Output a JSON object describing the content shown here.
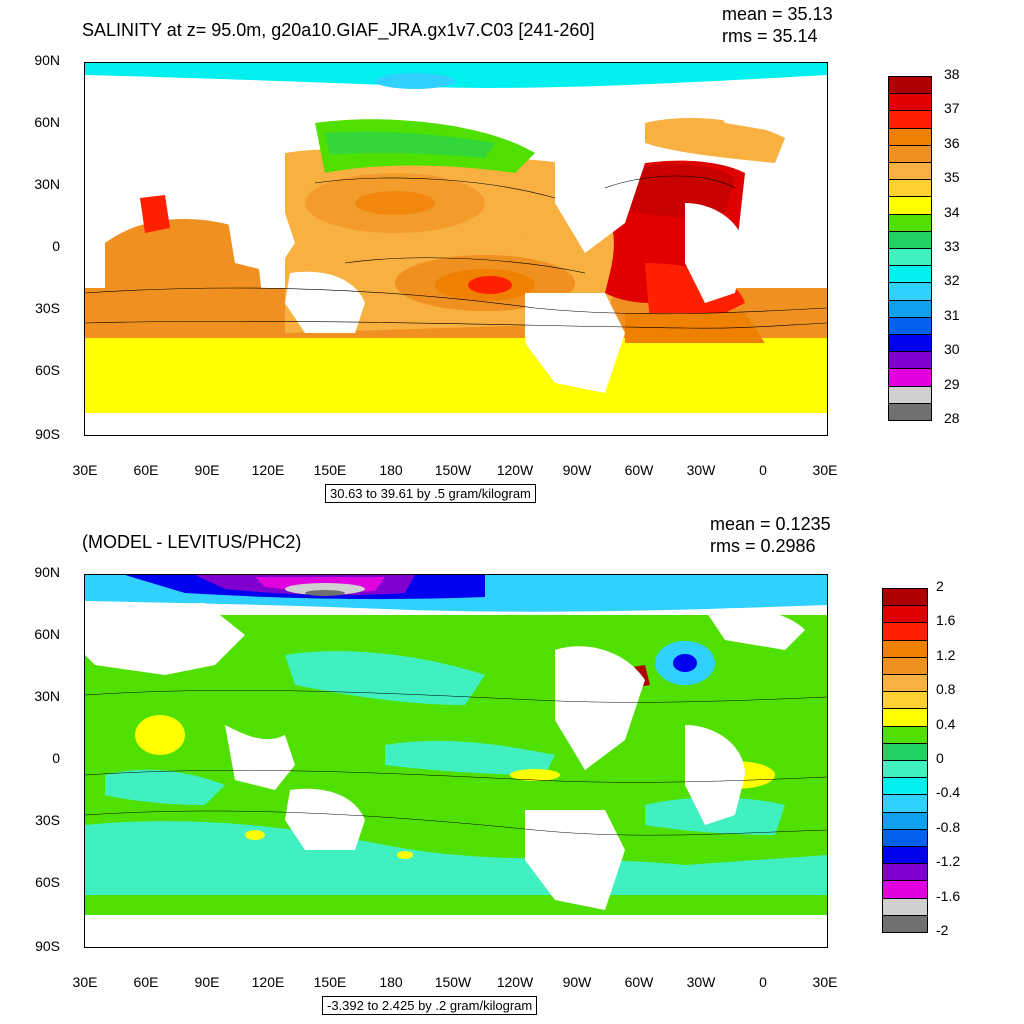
{
  "top_panel": {
    "title": "SALINITY at z=  95.0m, g20a10.GIAF_JRA.gx1v7.C03 [241-260]",
    "mean": "mean = 35.13",
    "rms": "rms = 35.14",
    "info": "30.63 to 39.61 by .5 gram/kilogram",
    "lat_labels": [
      "90N",
      "60N",
      "30N",
      "0",
      "30S",
      "60S",
      "90S"
    ],
    "lon_labels": [
      "30E",
      "60E",
      "90E",
      "120E",
      "150E",
      "180",
      "150W",
      "120W",
      "90W",
      "60W",
      "30W",
      "0",
      "30E"
    ],
    "colorbar": {
      "colors": [
        "#b00000",
        "#e00000",
        "#ff2000",
        "#f08000",
        "#f09020",
        "#f8b040",
        "#ffd030",
        "#ffff00",
        "#50e000",
        "#20d060",
        "#40f0c0",
        "#00f0f0",
        "#30d0ff",
        "#10a0f0",
        "#0060f0",
        "#0000f0",
        "#8000d0",
        "#e000e0",
        "#d0d0d0",
        "#707070"
      ],
      "labels": [
        "38",
        "37",
        "36",
        "35",
        "34",
        "33",
        "32",
        "31",
        "30",
        "29",
        "28"
      ]
    }
  },
  "bottom_panel": {
    "title": "(MODEL - LEVITUS/PHC2)",
    "mean": "mean = 0.1235",
    "rms": "rms = 0.2986",
    "info": "-3.392 to 2.425 by .2 gram/kilogram",
    "lat_labels": [
      "90N",
      "60N",
      "30N",
      "0",
      "30S",
      "60S",
      "90S"
    ],
    "lon_labels": [
      "30E",
      "60E",
      "90E",
      "120E",
      "150E",
      "180",
      "150W",
      "120W",
      "90W",
      "60W",
      "30W",
      "0",
      "30E"
    ],
    "colorbar": {
      "colors": [
        "#b00000",
        "#e00000",
        "#ff2000",
        "#f08000",
        "#f09020",
        "#f8b040",
        "#ffd030",
        "#ffff00",
        "#50e000",
        "#20d060",
        "#40f0c0",
        "#00f0f0",
        "#30d0ff",
        "#10a0f0",
        "#0060f0",
        "#0000f0",
        "#8000d0",
        "#e000e0",
        "#d0d0d0",
        "#707070"
      ],
      "labels": [
        "2",
        "1.6",
        "1.2",
        "0.8",
        "0.4",
        "0",
        "-0.4",
        "-0.8",
        "-1.2",
        "-1.6",
        "-2"
      ]
    }
  }
}
